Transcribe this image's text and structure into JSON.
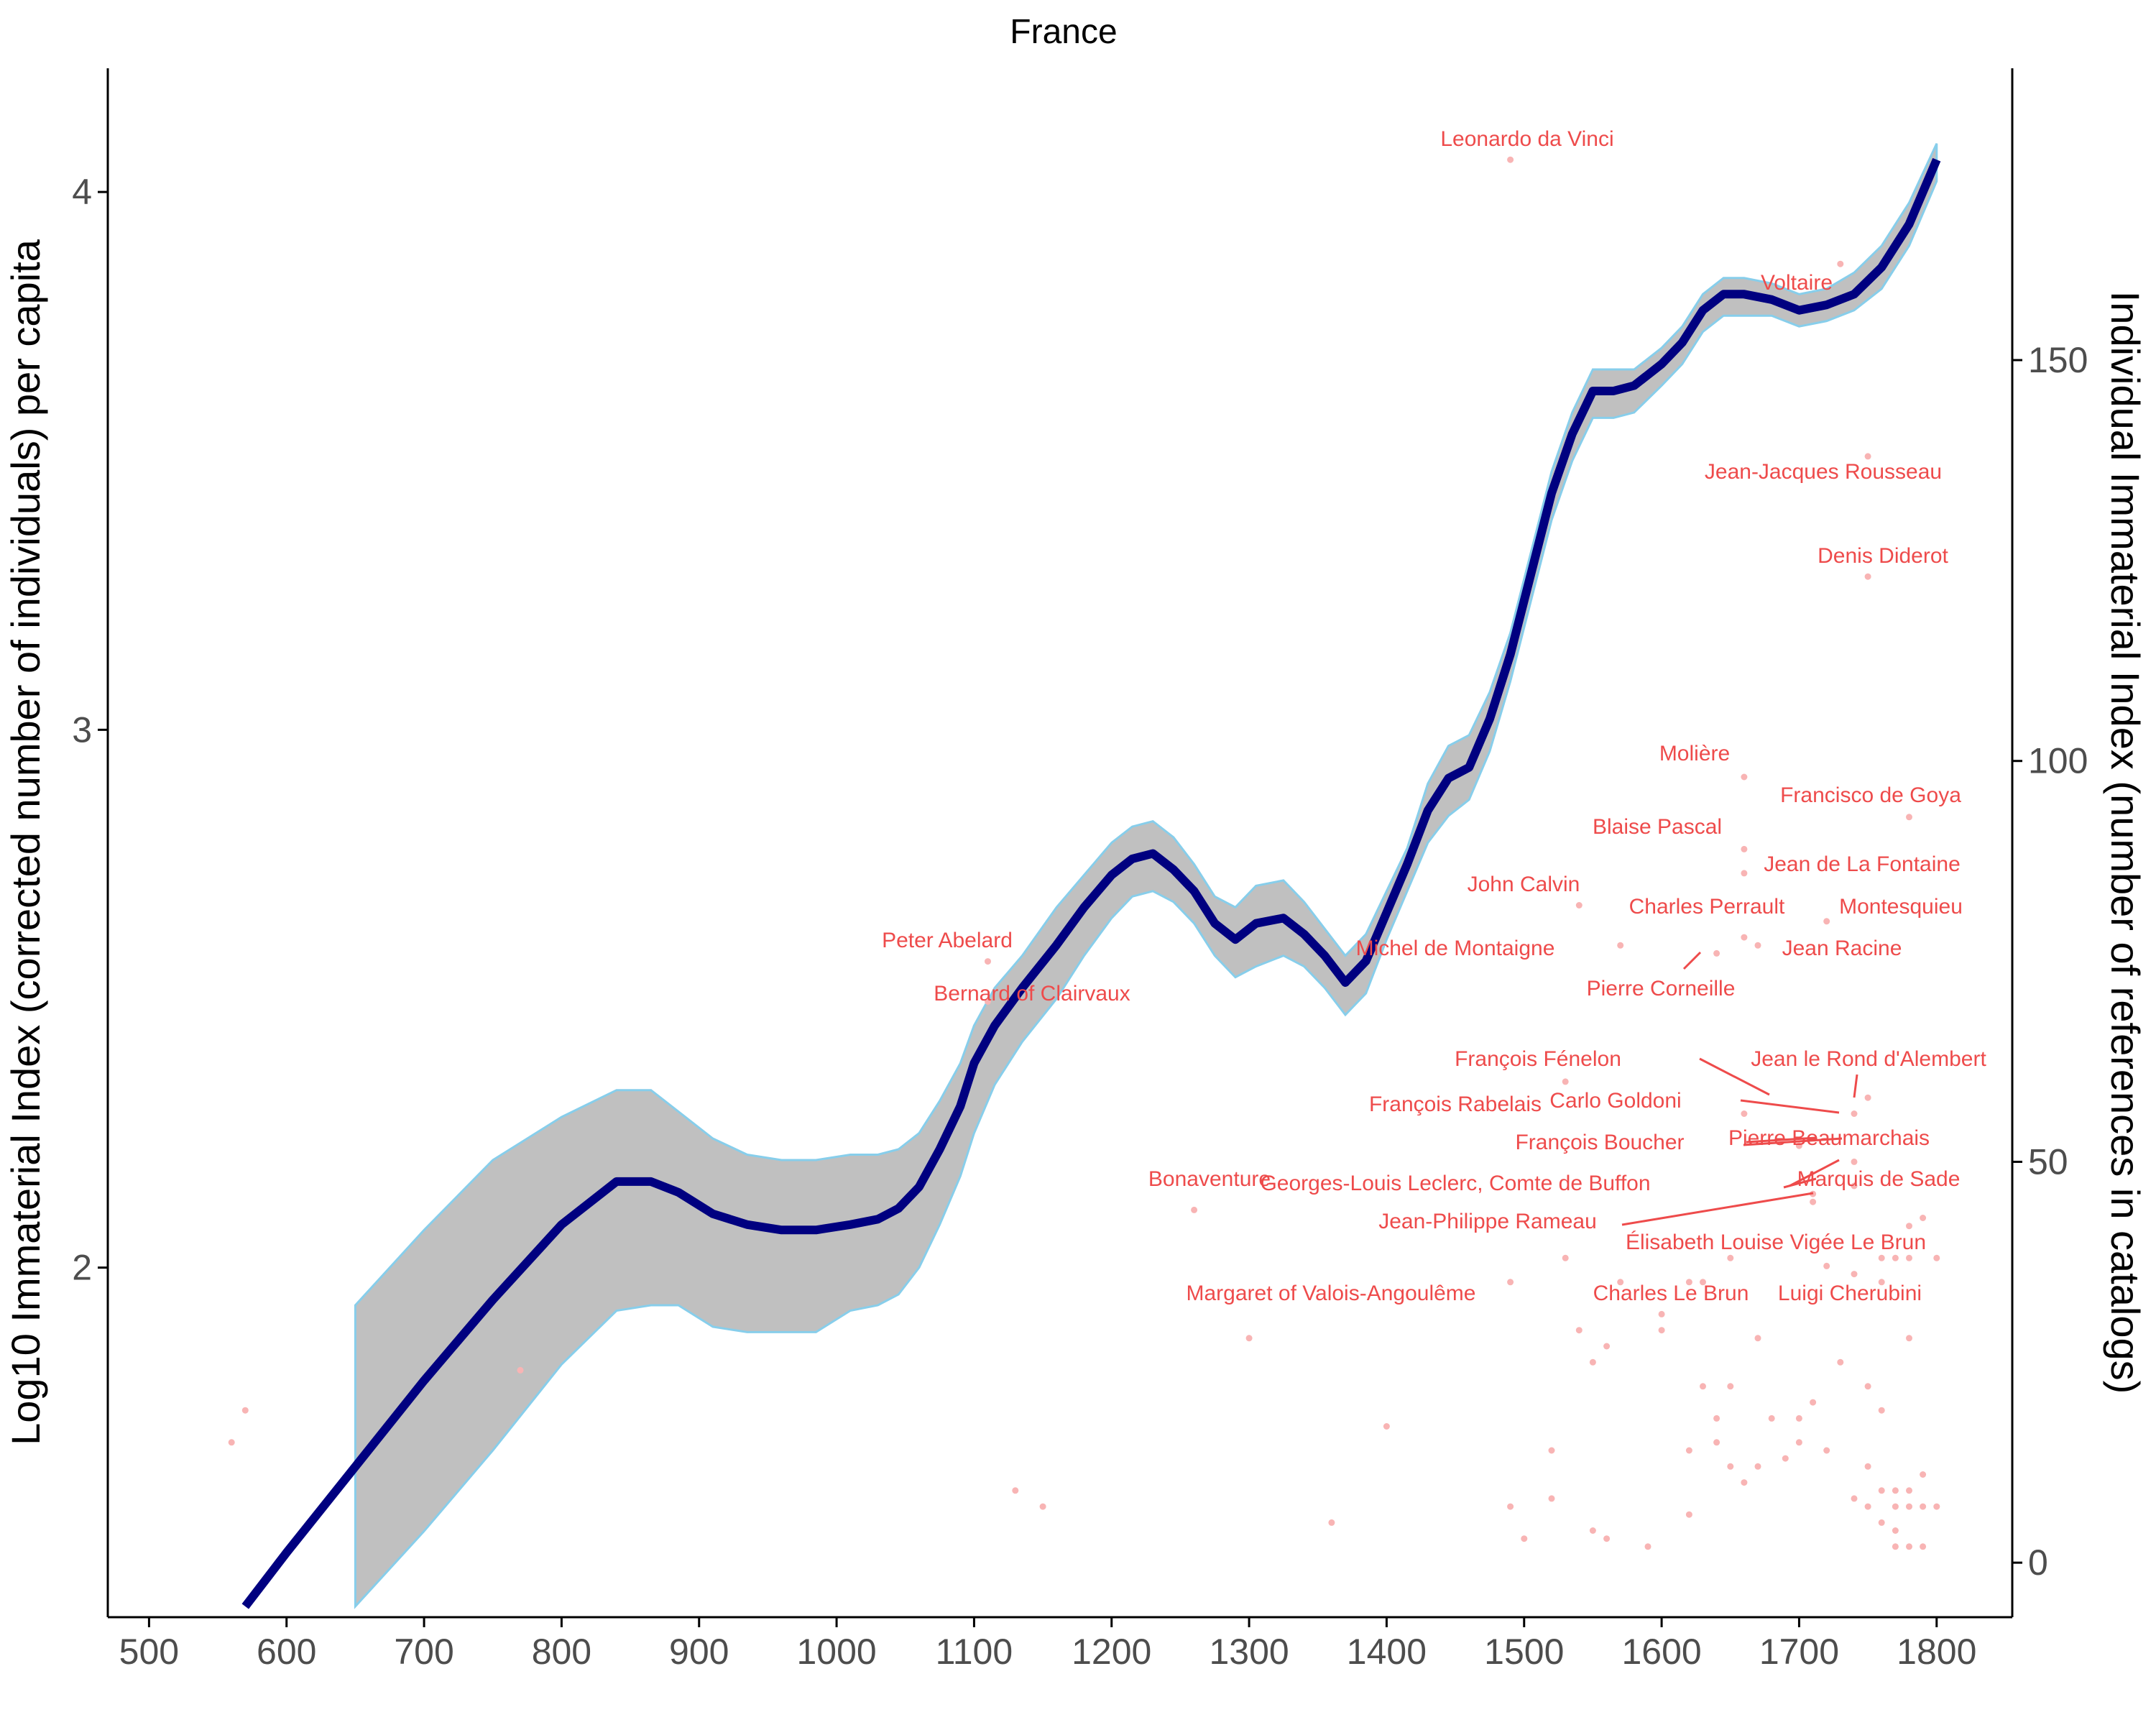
{
  "chart_data": {
    "type": "line",
    "title": "France",
    "xlabel": "",
    "ylabel": "Log10 Immaterial Index (corrected number of individuals) per capita",
    "y2label": "Individual Immaterial Index (number of references in catalogs)",
    "xlim": [
      470,
      1855
    ],
    "ylim": [
      1.35,
      4.23
    ],
    "y2lim": [
      -6.8,
      186.4
    ],
    "x_ticks": [
      500,
      600,
      700,
      800,
      900,
      1000,
      1100,
      1200,
      1300,
      1400,
      1500,
      1600,
      1700,
      1800
    ],
    "y_ticks": [
      2,
      3,
      4
    ],
    "y2_ticks": [
      0,
      50,
      100,
      150
    ],
    "grid": false,
    "colors": {
      "line": "#000080",
      "ribbon_fill": "#c0c0c0",
      "ribbon_edge": "#87ceeb",
      "labels": "#ee4b4b",
      "points": "#f8b4b4"
    },
    "smooth_line": {
      "x": [
        570,
        600,
        650,
        700,
        750,
        800,
        840,
        865,
        885,
        910,
        935,
        960,
        985,
        1010,
        1030,
        1045,
        1060,
        1075,
        1090,
        1100,
        1115,
        1135,
        1160,
        1180,
        1200,
        1215,
        1230,
        1245,
        1260,
        1275,
        1290,
        1305,
        1325,
        1340,
        1355,
        1370,
        1385,
        1400,
        1415,
        1430,
        1445,
        1460,
        1475,
        1490,
        1505,
        1520,
        1535,
        1550,
        1565,
        1580,
        1600,
        1615,
        1630,
        1645,
        1660,
        1680,
        1700,
        1720,
        1740,
        1760,
        1780,
        1800
      ],
      "y": [
        1.37,
        1.47,
        1.63,
        1.79,
        1.94,
        2.08,
        2.16,
        2.16,
        2.14,
        2.1,
        2.08,
        2.07,
        2.07,
        2.08,
        2.09,
        2.11,
        2.15,
        2.22,
        2.3,
        2.38,
        2.45,
        2.52,
        2.6,
        2.67,
        2.73,
        2.76,
        2.77,
        2.74,
        2.7,
        2.64,
        2.61,
        2.64,
        2.65,
        2.62,
        2.58,
        2.53,
        2.57,
        2.66,
        2.75,
        2.85,
        2.91,
        2.93,
        3.02,
        3.14,
        3.29,
        3.44,
        3.55,
        3.63,
        3.63,
        3.64,
        3.68,
        3.72,
        3.78,
        3.81,
        3.81,
        3.8,
        3.78,
        3.79,
        3.81,
        3.86,
        3.94,
        4.06
      ]
    },
    "confidence_band": {
      "x": [
        650,
        700,
        750,
        800,
        840,
        865,
        885,
        910,
        935,
        960,
        985,
        1010,
        1030,
        1045,
        1060,
        1075,
        1090,
        1100,
        1115,
        1135,
        1160,
        1180,
        1200,
        1215,
        1230,
        1245,
        1260,
        1275,
        1290,
        1305,
        1325,
        1340,
        1355,
        1370,
        1385,
        1400,
        1415,
        1430,
        1445,
        1460,
        1475,
        1490,
        1505,
        1520,
        1535,
        1550,
        1565,
        1580,
        1600,
        1615,
        1630,
        1645,
        1660,
        1680,
        1700,
        1720,
        1740,
        1760,
        1780,
        1800
      ],
      "upper": [
        1.93,
        2.07,
        2.2,
        2.28,
        2.33,
        2.33,
        2.29,
        2.24,
        2.21,
        2.2,
        2.2,
        2.21,
        2.21,
        2.22,
        2.25,
        2.31,
        2.38,
        2.45,
        2.52,
        2.58,
        2.67,
        2.73,
        2.79,
        2.82,
        2.83,
        2.8,
        2.75,
        2.69,
        2.67,
        2.71,
        2.72,
        2.68,
        2.63,
        2.58,
        2.62,
        2.7,
        2.78,
        2.9,
        2.97,
        2.99,
        3.07,
        3.18,
        3.33,
        3.48,
        3.59,
        3.67,
        3.67,
        3.67,
        3.71,
        3.75,
        3.81,
        3.84,
        3.84,
        3.83,
        3.81,
        3.82,
        3.85,
        3.9,
        3.98,
        4.09
      ],
      "lower": [
        1.37,
        1.51,
        1.66,
        1.82,
        1.92,
        1.93,
        1.93,
        1.89,
        1.88,
        1.88,
        1.88,
        1.92,
        1.93,
        1.95,
        2.0,
        2.08,
        2.17,
        2.25,
        2.34,
        2.42,
        2.5,
        2.58,
        2.65,
        2.69,
        2.7,
        2.68,
        2.64,
        2.58,
        2.54,
        2.56,
        2.58,
        2.56,
        2.52,
        2.47,
        2.51,
        2.61,
        2.7,
        2.79,
        2.84,
        2.87,
        2.96,
        3.09,
        3.24,
        3.39,
        3.5,
        3.58,
        3.58,
        3.59,
        3.64,
        3.68,
        3.74,
        3.77,
        3.77,
        3.77,
        3.75,
        3.76,
        3.78,
        3.82,
        3.9,
        4.02
      ]
    },
    "labeled_points": [
      {
        "name": "Leonardo da Vinci",
        "year": 1490,
        "refs": 175
      },
      {
        "name": "Voltaire",
        "year": 1730,
        "refs": 162
      },
      {
        "name": "Jean-Jacques Rousseau",
        "year": 1750,
        "refs": 138
      },
      {
        "name": "Denis Diderot",
        "year": 1750,
        "refs": 123
      },
      {
        "name": "Molière",
        "year": 1660,
        "refs": 98
      },
      {
        "name": "Francisco de Goya",
        "year": 1780,
        "refs": 93
      },
      {
        "name": "Blaise Pascal",
        "year": 1660,
        "refs": 89
      },
      {
        "name": "Jean de La Fontaine",
        "year": 1660,
        "refs": 86
      },
      {
        "name": "John Calvin",
        "year": 1540,
        "refs": 82
      },
      {
        "name": "Montesquieu",
        "year": 1720,
        "refs": 80
      },
      {
        "name": "Charles Perrault",
        "year": 1660,
        "refs": 78
      },
      {
        "name": "Michel de Montaigne",
        "year": 1570,
        "refs": 77
      },
      {
        "name": "Jean Racine",
        "year": 1670,
        "refs": 77
      },
      {
        "name": "Peter Abelard",
        "year": 1110,
        "refs": 75
      },
      {
        "name": "Pierre Corneille",
        "year": 1640,
        "refs": 76
      },
      {
        "name": "Bernard of Clairvaux",
        "year": 1110,
        "refs": 70
      },
      {
        "name": "Jean le Rond d'Alembert",
        "year": 1750,
        "refs": 58
      },
      {
        "name": "François Fénelon",
        "year": 1660,
        "refs": 56
      },
      {
        "name": "Carlo Goldoni",
        "year": 1740,
        "refs": 56
      },
      {
        "name": "François Rabelais",
        "year": 1530,
        "refs": 60
      },
      {
        "name": "Pierre Beaumarchais",
        "year": 1740,
        "refs": 50
      },
      {
        "name": "François Boucher",
        "year": 1700,
        "refs": 52
      },
      {
        "name": "Marquis de Sade",
        "year": 1740,
        "refs": 47
      },
      {
        "name": "Georges-Louis Leclerc, Comte de Buffon",
        "year": 1710,
        "refs": 46
      },
      {
        "name": "Bonaventure",
        "year": 1260,
        "refs": 44
      },
      {
        "name": "Jean-Philippe Rameau",
        "year": 1710,
        "refs": 45
      },
      {
        "name": "Élisabeth Louise Vigée Le Brun",
        "year": 1760,
        "refs": 38
      },
      {
        "name": "Margaret of Valois-Angoulême",
        "year": 1490,
        "refs": 35
      },
      {
        "name": "Charles Le Brun",
        "year": 1620,
        "refs": 35
      },
      {
        "name": "Luigi Cherubini",
        "year": 1760,
        "refs": 35
      }
    ],
    "other_points": [
      [
        560,
        15
      ],
      [
        570,
        19
      ],
      [
        770,
        24
      ],
      [
        1130,
        9
      ],
      [
        1150,
        7
      ],
      [
        1300,
        28
      ],
      [
        1360,
        5
      ],
      [
        1400,
        17
      ],
      [
        1490,
        7
      ],
      [
        1500,
        3
      ],
      [
        1520,
        8
      ],
      [
        1520,
        14
      ],
      [
        1530,
        38
      ],
      [
        1540,
        29
      ],
      [
        1550,
        4
      ],
      [
        1550,
        25
      ],
      [
        1560,
        3
      ],
      [
        1560,
        27
      ],
      [
        1570,
        35
      ],
      [
        1590,
        2
      ],
      [
        1600,
        29
      ],
      [
        1600,
        31
      ],
      [
        1620,
        6
      ],
      [
        1620,
        14
      ],
      [
        1630,
        22
      ],
      [
        1630,
        35
      ],
      [
        1640,
        15
      ],
      [
        1640,
        18
      ],
      [
        1650,
        12
      ],
      [
        1650,
        22
      ],
      [
        1650,
        38
      ],
      [
        1660,
        10
      ],
      [
        1670,
        12
      ],
      [
        1670,
        28
      ],
      [
        1680,
        18
      ],
      [
        1690,
        13
      ],
      [
        1700,
        15
      ],
      [
        1700,
        18
      ],
      [
        1710,
        20
      ],
      [
        1720,
        14
      ],
      [
        1720,
        37
      ],
      [
        1730,
        25
      ],
      [
        1740,
        8
      ],
      [
        1740,
        36
      ],
      [
        1750,
        7
      ],
      [
        1750,
        12
      ],
      [
        1750,
        22
      ],
      [
        1760,
        5
      ],
      [
        1760,
        9
      ],
      [
        1760,
        19
      ],
      [
        1770,
        2
      ],
      [
        1770,
        4
      ],
      [
        1770,
        7
      ],
      [
        1770,
        9
      ],
      [
        1770,
        38
      ],
      [
        1780,
        2
      ],
      [
        1780,
        7
      ],
      [
        1780,
        9
      ],
      [
        1780,
        28
      ],
      [
        1780,
        38
      ],
      [
        1780,
        42
      ],
      [
        1790,
        2
      ],
      [
        1790,
        7
      ],
      [
        1790,
        11
      ],
      [
        1790,
        43
      ],
      [
        1800,
        7
      ],
      [
        1800,
        38
      ]
    ]
  }
}
